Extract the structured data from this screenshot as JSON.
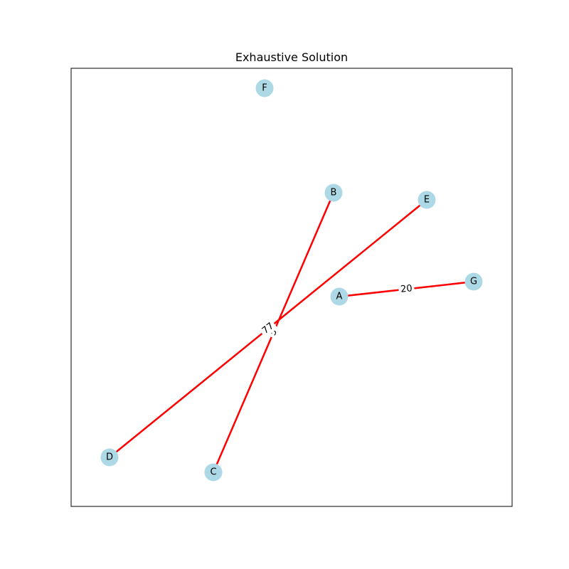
{
  "title": "Exhaustive Solution",
  "colors": {
    "node_fill": "#add8e6",
    "edge": "#ff0000",
    "frame": "#000000"
  },
  "nodes": [
    {
      "id": "A",
      "label": "A"
    },
    {
      "id": "B",
      "label": "B"
    },
    {
      "id": "C",
      "label": "C"
    },
    {
      "id": "D",
      "label": "D"
    },
    {
      "id": "E",
      "label": "E"
    },
    {
      "id": "F",
      "label": "F"
    },
    {
      "id": "G",
      "label": "G"
    }
  ],
  "edges": [
    {
      "from": "B",
      "to": "C",
      "label": "5"
    },
    {
      "from": "E",
      "to": "D",
      "label": "77"
    },
    {
      "from": "A",
      "to": "G",
      "label": "20"
    }
  ]
}
